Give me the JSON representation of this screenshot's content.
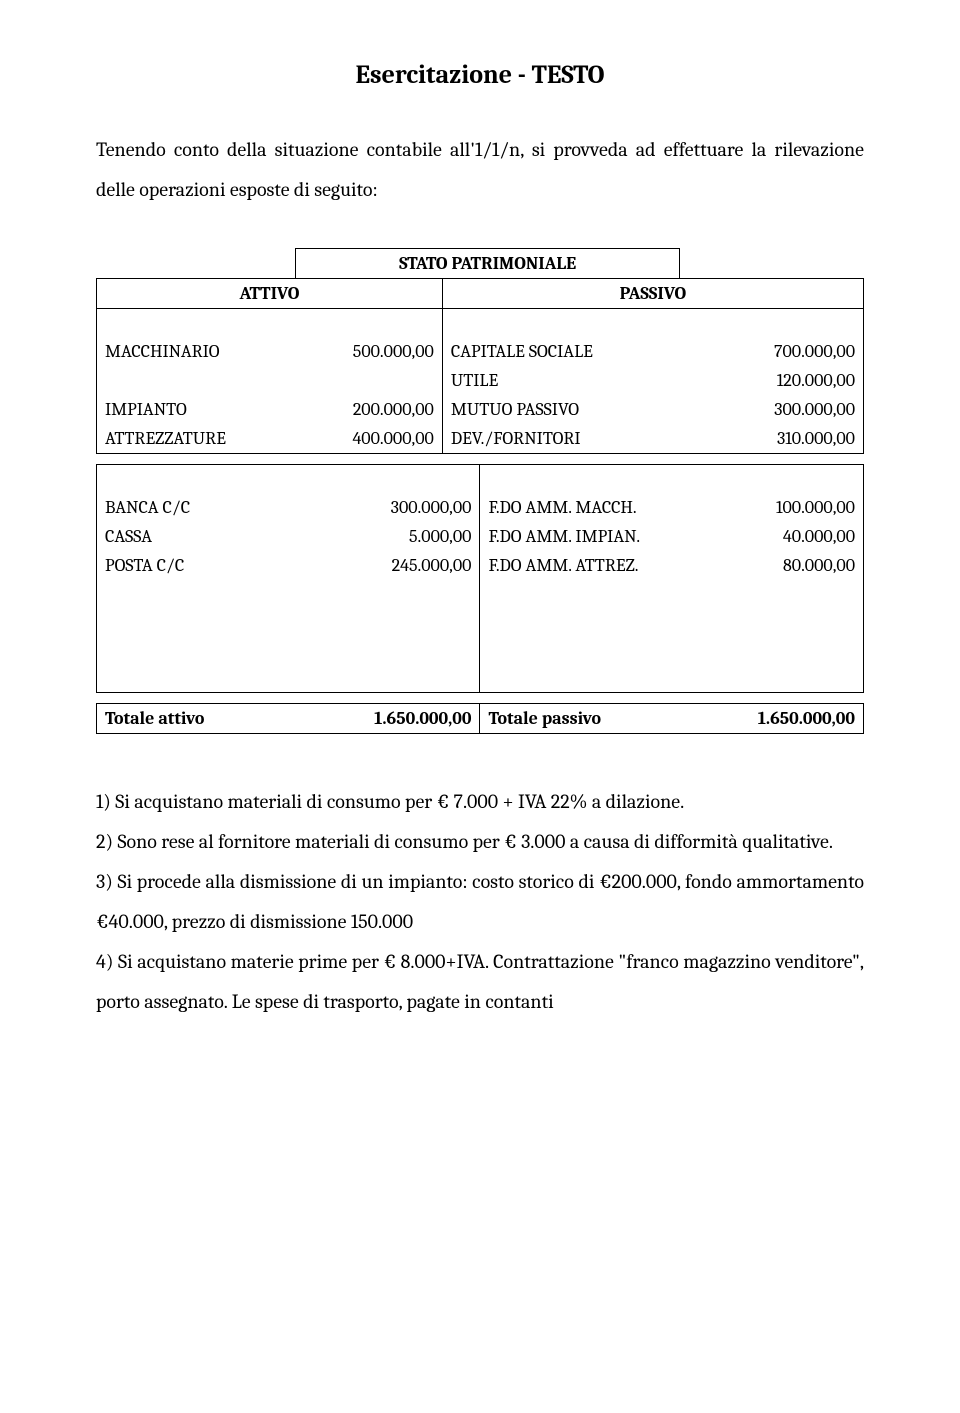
{
  "title": "Esercitazione  -  TESTO",
  "intro": "Tenendo conto della situazione contabile all'1/1/n, si provveda ad effettuare la rilevazione delle operazioni esposte di seguito:",
  "table_header": {
    "caption": "STATO PATRIMONIALE",
    "attivo": "ATTIVO",
    "passivo": "PASSIVO"
  },
  "rows_block1": [
    {
      "a_label": "MACCHINARIO",
      "a_val": "500.000,00",
      "p_label": "CAPITALE SOCIALE",
      "p_val": "700.000,00"
    },
    {
      "a_label": "",
      "a_val": "",
      "p_label": "UTILE",
      "p_val": "120.000,00"
    },
    {
      "a_label": "IMPIANTO",
      "a_val": "200.000,00",
      "p_label": "MUTUO PASSIVO",
      "p_val": "300.000,00"
    },
    {
      "a_label": "ATTREZZATURE",
      "a_val": "400.000,00",
      "p_label": "DEV./FORNITORI",
      "p_val": "310.000,00"
    }
  ],
  "rows_block2": [
    {
      "a_label": "BANCA C/C",
      "a_val": "300.000,00",
      "p_label": "F.DO AMM. MACCH.",
      "p_val": "100.000,00"
    },
    {
      "a_label": "CASSA",
      "a_val": "5.000,00",
      "p_label": "F.DO AMM. IMPIAN.",
      "p_val": "40.000,00"
    },
    {
      "a_label": "POSTA C/C",
      "a_val": "245.000,00",
      "p_label": "F.DO AMM. ATTREZ.",
      "p_val": "80.000,00"
    }
  ],
  "totals": {
    "a_label": "Totale attivo",
    "a_val": "1.650.000,00",
    "p_label": "Totale passivo",
    "p_val": "1.650.000,00"
  },
  "items": [
    "1) Si acquistano materiali di consumo per € 7.000 + IVA 22% a dilazione.",
    "2) Sono rese al fornitore materiali di consumo per € 3.000 a causa di difformità qualitative.",
    "3) Si procede alla dismissione di un impianto: costo storico di €200.000, fondo ammortamento €40.000, prezzo di dismissione 150.000",
    "4) Si acquistano materie prime per € 8.000+IVA. Contrattazione \"franco magazzino venditore\", porto assegnato. Le spese di trasporto, pagate in contanti"
  ]
}
